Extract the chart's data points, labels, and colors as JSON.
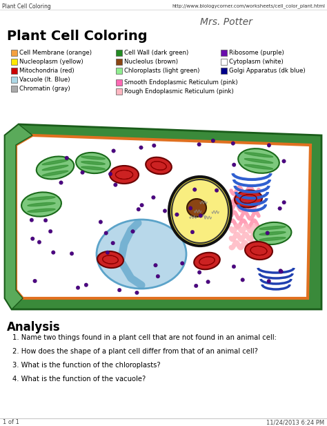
{
  "title": "Plant Cell Coloring",
  "browser_tab": "Plant Cell Coloring",
  "url": "http://www.biologycorner.com/worksheets/cell_color_plant.html",
  "signature": "Mrs. Potter",
  "legend_col1": [
    {
      "label": "Cell Membrane (orange)",
      "color": "#F4A040"
    },
    {
      "label": "Nucleoplasm (yellow)",
      "color": "#FFE800"
    },
    {
      "label": "Mitochondria (red)",
      "color": "#CC0000"
    },
    {
      "label": "Vacuole (lt. Blue)",
      "color": "#ADD8E6"
    },
    {
      "label": "Chromatin (gray)",
      "color": "#AAAAAA"
    }
  ],
  "legend_col2": [
    {
      "label": "Cell Wall (dark green)",
      "color": "#228B22"
    },
    {
      "label": "Nucleolus (brown)",
      "color": "#8B4513"
    },
    {
      "label": "Chloroplasts (light green)",
      "color": "#90EE90"
    },
    {
      "label": "Smooth Endoplasmic Reticulum (pink)",
      "color": "#FF69B4"
    },
    {
      "label": "Rough Endoplasmic Reticulum (pink)",
      "color": "#FFB6C1"
    }
  ],
  "legend_col3": [
    {
      "label": "Ribosome (purple)",
      "color": "#6A0DAD"
    },
    {
      "label": "Cytoplasm (white)",
      "color": "#FFFFFF"
    },
    {
      "label": "Golgi Apparatus (dk blue)",
      "color": "#00008B"
    }
  ],
  "analysis_title": "Analysis",
  "questions": [
    "1. Name two things found in a plant cell that are not found in an animal cell:",
    "2. How does the shape of a plant cell differ from that of an animal cell?",
    "3. What is the function of the chloroplasts?",
    "4. What is the function of the vacuole?"
  ],
  "footer_left": "1 of 1",
  "footer_right": "11/24/2013 6:24 PM",
  "bg_color": "#FFFFFF",
  "text_color": "#000000"
}
